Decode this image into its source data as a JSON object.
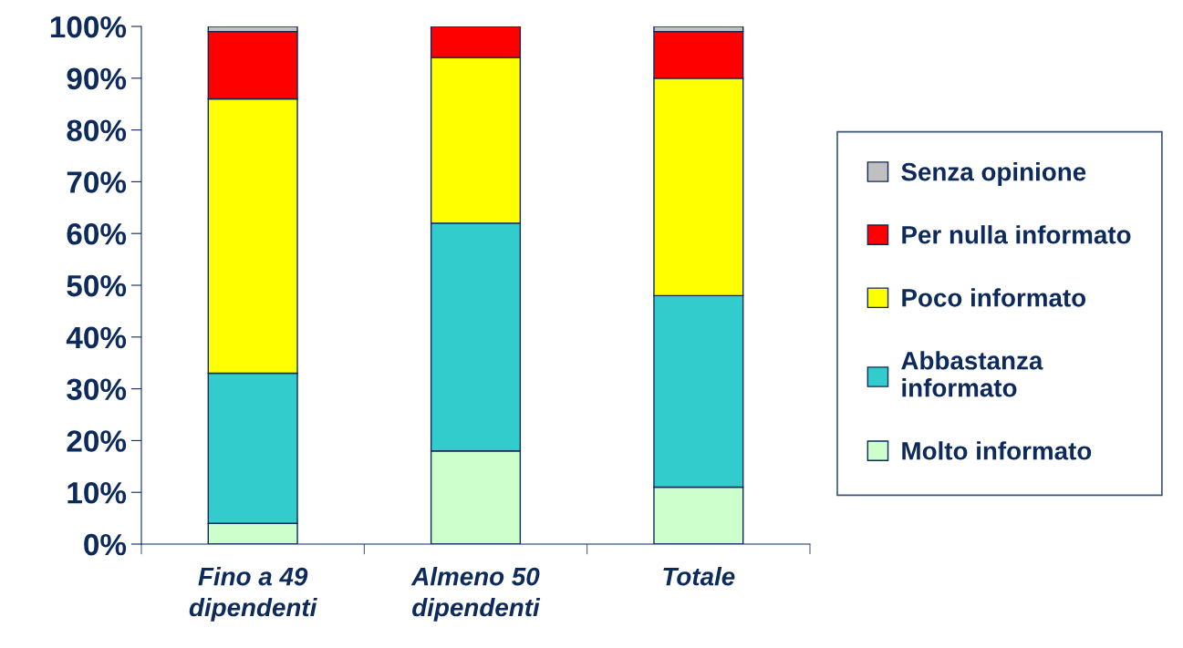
{
  "chart_data": {
    "type": "bar",
    "stacked": true,
    "categories": [
      "Fino a 49\ndipendenti",
      "Almeno 50\ndipendenti",
      "Totale"
    ],
    "series": [
      {
        "name": "Molto informato",
        "color": "#ccffcc",
        "values": [
          4,
          18,
          11
        ]
      },
      {
        "name": "Abbastanza\ninformato",
        "color": "#33cccc",
        "values": [
          29,
          44,
          37
        ]
      },
      {
        "name": "Poco informato",
        "color": "#ffff00",
        "values": [
          53,
          32,
          42
        ]
      },
      {
        "name": "Per nulla informato",
        "color": "#ff0000",
        "values": [
          13,
          6,
          9
        ]
      },
      {
        "name": "Senza opinione",
        "color": "#c0c0c0",
        "values": [
          1,
          0,
          1
        ]
      }
    ],
    "ylim": [
      0,
      100
    ],
    "yticks": [
      {
        "value": 0,
        "label": "0%"
      },
      {
        "value": 10,
        "label": "10%"
      },
      {
        "value": 20,
        "label": "20%"
      },
      {
        "value": 30,
        "label": "30%"
      },
      {
        "value": 40,
        "label": "40%"
      },
      {
        "value": 50,
        "label": "50%"
      },
      {
        "value": 60,
        "label": "60%"
      },
      {
        "value": 70,
        "label": "70%"
      },
      {
        "value": 80,
        "label": "80%"
      },
      {
        "value": 90,
        "label": "90%"
      },
      {
        "value": 100,
        "label": "100%"
      }
    ],
    "grid": false,
    "legend": "right"
  }
}
